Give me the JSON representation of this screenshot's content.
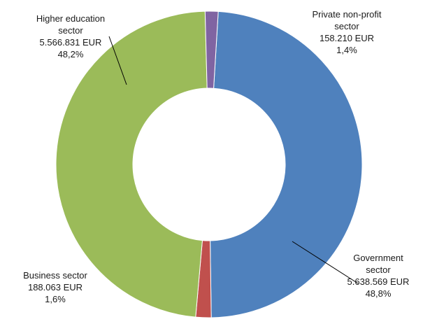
{
  "chart_data": {
    "type": "pie",
    "variant": "donut",
    "title": "",
    "slices": [
      {
        "category": "Government sector",
        "label_lines": [
          "Government",
          "sector"
        ],
        "amount": "5.638.569 EUR",
        "value": 5638569,
        "percent_label": "48,8%",
        "percent": 48.8,
        "color": "#4f81bd"
      },
      {
        "category": "Business sector",
        "label_lines": [
          "Business sector"
        ],
        "amount": "188.063 EUR",
        "value": 188063,
        "percent_label": "1,6%",
        "percent": 1.6,
        "color": "#c0504d"
      },
      {
        "category": "Higher education sector",
        "label_lines": [
          "Higher education",
          "sector"
        ],
        "amount": "5.566.831 EUR",
        "value": 5566831,
        "percent_label": "48,2%",
        "percent": 48.2,
        "color": "#9bbb59"
      },
      {
        "category": "Private non-profit sector",
        "label_lines": [
          "Private non-profit",
          "sector"
        ],
        "amount": "158.210 EUR",
        "value": 158210,
        "percent_label": "1,4%",
        "percent": 1.4,
        "color": "#8064a2"
      }
    ],
    "legend": "none"
  }
}
